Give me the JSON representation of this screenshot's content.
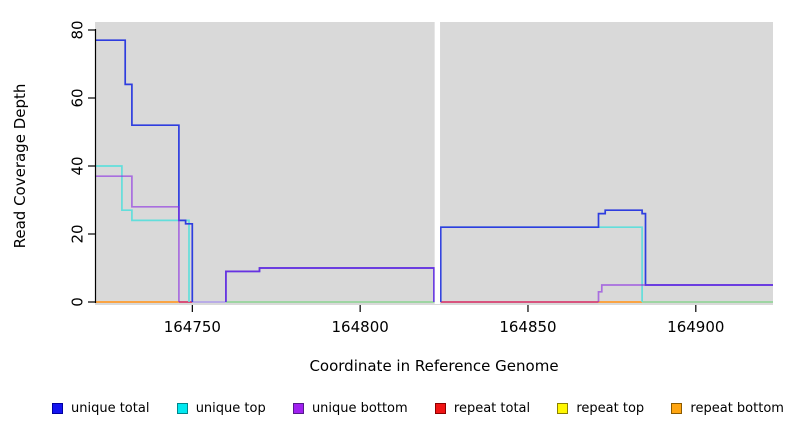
{
  "chart_data": {
    "type": "line",
    "title": "",
    "xlabel": "Coordinate in Reference Genome",
    "ylabel": "Read Coverage Depth",
    "xlim": [
      164721,
      164923
    ],
    "ylim": [
      0,
      80
    ],
    "x_end": 164923,
    "x_ticks": [
      {
        "value": 164750,
        "label": "164750"
      },
      {
        "value": 164800,
        "label": "164800"
      },
      {
        "value": 164850,
        "label": "164850"
      },
      {
        "value": 164900,
        "label": "164900"
      }
    ],
    "y_ticks": [
      {
        "value": 0,
        "label": "0"
      },
      {
        "value": 20,
        "label": "20"
      },
      {
        "value": 40,
        "label": "40"
      },
      {
        "value": 60,
        "label": "60"
      },
      {
        "value": 80,
        "label": "80"
      }
    ],
    "plot_bg": "#d9d9d9",
    "gap": {
      "from": 164822.2,
      "to": 164823.8
    },
    "series": [
      {
        "name": "unique total",
        "color": "#2e3ddf",
        "opacity": 1,
        "step_points": [
          [
            164721,
            77
          ],
          [
            164730,
            64
          ],
          [
            164732,
            52
          ],
          [
            164746,
            24
          ],
          [
            164748,
            23
          ],
          [
            164750,
            0
          ],
          [
            164760,
            9
          ],
          [
            164770,
            10
          ],
          [
            164822,
            0
          ],
          [
            164824,
            22
          ],
          [
            164871,
            26
          ],
          [
            164873,
            27
          ],
          [
            164884,
            26
          ],
          [
            164885,
            5
          ]
        ]
      },
      {
        "name": "unique top",
        "color": "#62dedb",
        "opacity": 1,
        "step_points": [
          [
            164721,
            40
          ],
          [
            164729,
            27
          ],
          [
            164732,
            24
          ],
          [
            164749,
            0
          ],
          [
            164824,
            22
          ],
          [
            164884,
            0
          ]
        ]
      },
      {
        "name": "unique bottom",
        "color": "#8b2be2",
        "opacity": 0.62,
        "step_points": [
          [
            164721,
            37
          ],
          [
            164732,
            28
          ],
          [
            164746,
            0
          ],
          [
            164760,
            9
          ],
          [
            164770,
            10
          ],
          [
            164822,
            0
          ],
          [
            164871,
            3
          ],
          [
            164872,
            5
          ]
        ]
      },
      {
        "name": "repeat total",
        "color": "#e8112d",
        "opacity": 1,
        "step_points": [
          [
            164721,
            0
          ]
        ]
      },
      {
        "name": "repeat top",
        "color": "#fff700",
        "opacity": 1,
        "step_points": [
          [
            164721,
            0
          ]
        ]
      },
      {
        "name": "repeat bottom",
        "color": "#ff9d2e",
        "opacity": 1,
        "step_points": [
          [
            164721,
            0
          ]
        ]
      }
    ],
    "draw_order": [
      1,
      0,
      2,
      3,
      4,
      5
    ],
    "baseline_segments": [
      {
        "from": 164721,
        "to": 164746,
        "color": "#ff9d2e"
      },
      {
        "from": 164746,
        "to": 164750,
        "color": "#d84070"
      },
      {
        "from": 164750,
        "to": 164760,
        "color": "#b4a5e8"
      },
      {
        "from": 164760,
        "to": 164822.2,
        "color": "#96d49b"
      },
      {
        "from": 164824,
        "to": 164871,
        "color": "#d84070"
      },
      {
        "from": 164871,
        "to": 164884,
        "color": "#ff9d2e"
      },
      {
        "from": 164884,
        "to": 164923,
        "color": "#96d49b"
      }
    ]
  },
  "legend": {
    "items": [
      {
        "label": "unique total",
        "fill": "#1414f0",
        "border": "#0000a0"
      },
      {
        "label": "unique top",
        "fill": "#00e8f0",
        "border": "#00868b"
      },
      {
        "label": "unique bottom",
        "fill": "#a020f0",
        "border": "#551a8b"
      },
      {
        "label": "repeat total",
        "fill": "#f01414",
        "border": "#8b0000"
      },
      {
        "label": "repeat top",
        "fill": "#fff700",
        "border": "#8b8000"
      },
      {
        "label": "repeat bottom",
        "fill": "#ffa510",
        "border": "#8b5a00"
      }
    ]
  }
}
